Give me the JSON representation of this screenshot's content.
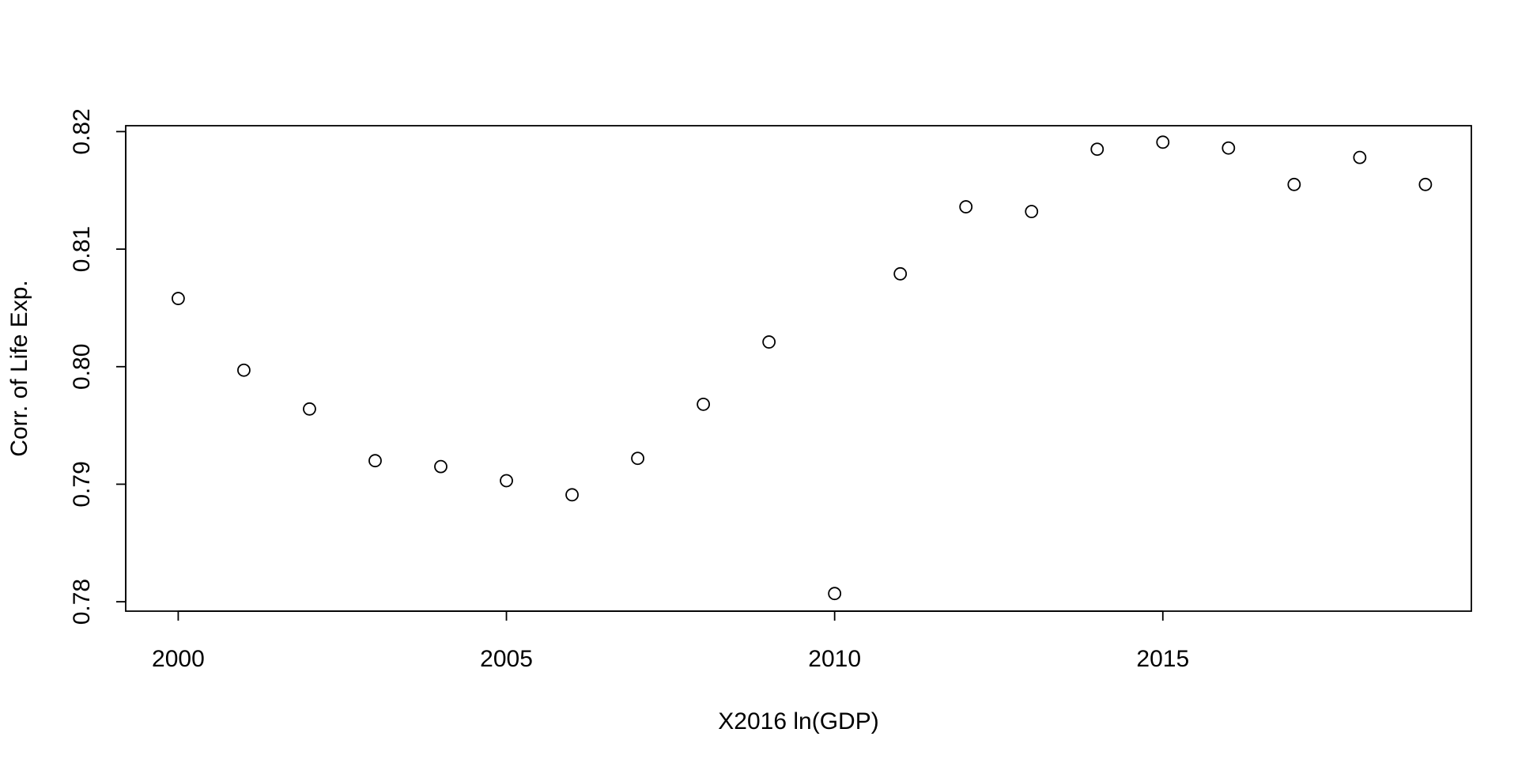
{
  "chart_data": {
    "type": "scatter",
    "title": "",
    "xlabel": "X2016 ln(GDP)",
    "ylabel": "Corr. of Life Exp.",
    "xlim": [
      1999.2,
      2019.7
    ],
    "ylim": [
      0.7792,
      0.8205
    ],
    "x_ticks": [
      2000,
      2005,
      2010,
      2015
    ],
    "x_tick_labels": [
      "2000",
      "2005",
      "2010",
      "2015"
    ],
    "y_ticks": [
      0.78,
      0.79,
      0.8,
      0.81,
      0.82
    ],
    "y_tick_labels": [
      "0.78",
      "0.79",
      "0.80",
      "0.81",
      "0.82"
    ],
    "grid": false,
    "marker": "open-circle",
    "points": [
      {
        "x": 2000,
        "y": 0.8058
      },
      {
        "x": 2001,
        "y": 0.7997
      },
      {
        "x": 2002,
        "y": 0.7964
      },
      {
        "x": 2003,
        "y": 0.792
      },
      {
        "x": 2004,
        "y": 0.7915
      },
      {
        "x": 2005,
        "y": 0.7903
      },
      {
        "x": 2006,
        "y": 0.7891
      },
      {
        "x": 2007,
        "y": 0.7922
      },
      {
        "x": 2008,
        "y": 0.7968
      },
      {
        "x": 2009,
        "y": 0.8021
      },
      {
        "x": 2010,
        "y": 0.7807
      },
      {
        "x": 2011,
        "y": 0.8079
      },
      {
        "x": 2012,
        "y": 0.8136
      },
      {
        "x": 2013,
        "y": 0.8132
      },
      {
        "x": 2014,
        "y": 0.8185
      },
      {
        "x": 2015,
        "y": 0.8191
      },
      {
        "x": 2016,
        "y": 0.8186
      },
      {
        "x": 2017,
        "y": 0.8155
      },
      {
        "x": 2018,
        "y": 0.8178
      },
      {
        "x": 2019,
        "y": 0.8155
      }
    ]
  }
}
